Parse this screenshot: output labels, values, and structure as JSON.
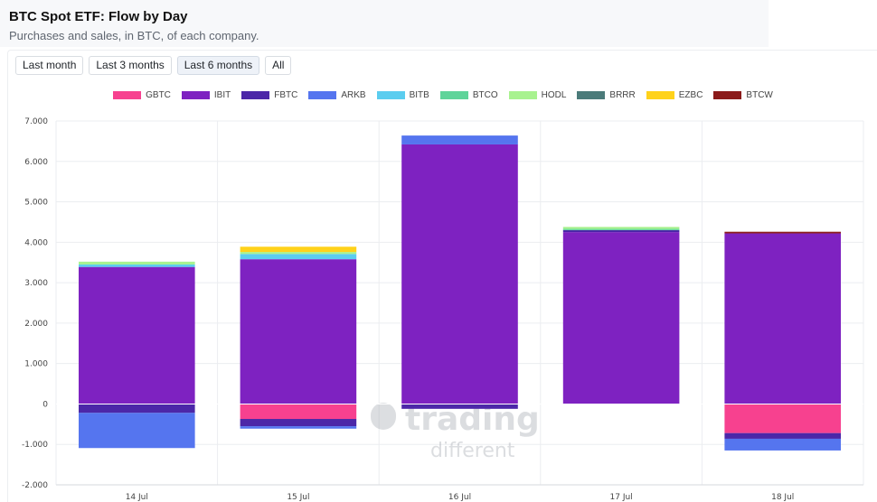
{
  "header": {
    "title": "BTC Spot ETF: Flow by Day",
    "subtitle": "Purchases and sales, in BTC, of each company."
  },
  "range_buttons": [
    {
      "label": "Last month",
      "active": false
    },
    {
      "label": "Last 3 months",
      "active": false
    },
    {
      "label": "Last 6 months",
      "active": true
    },
    {
      "label": "All",
      "active": false
    }
  ],
  "watermark": {
    "line1": "trading",
    "line2": "different"
  },
  "chart_data": {
    "type": "bar",
    "stacked": true,
    "categories": [
      "14 Jul",
      "15 Jul",
      "16 Jul",
      "17 Jul",
      "18 Jul"
    ],
    "ylim": [
      -2000,
      7000
    ],
    "yticks": [
      -2000,
      -1000,
      0,
      1000,
      2000,
      3000,
      4000,
      5000,
      6000,
      7000
    ],
    "ytick_labels": [
      "-2.000",
      "-1.000",
      "0",
      "1.000",
      "2.000",
      "3.000",
      "4.000",
      "5.000",
      "6.000",
      "7.000"
    ],
    "grid": true,
    "legend_position": "top-center",
    "series": [
      {
        "name": "GBTC",
        "color": "#f7418f",
        "values": [
          0,
          -370,
          0,
          0,
          -720
        ]
      },
      {
        "name": "IBIT",
        "color": "#7e22c1",
        "values": [
          3390,
          3580,
          6420,
          4250,
          4220
        ]
      },
      {
        "name": "FBTC",
        "color": "#4c27a8",
        "values": [
          -220,
          -180,
          -120,
          50,
          -140
        ]
      },
      {
        "name": "ARKB",
        "color": "#5575ef",
        "values": [
          -870,
          -60,
          220,
          0,
          -290
        ]
      },
      {
        "name": "BITB",
        "color": "#5bcdef",
        "values": [
          60,
          130,
          0,
          0,
          0
        ]
      },
      {
        "name": "BTCO",
        "color": "#5fd49a",
        "values": [
          0,
          0,
          0,
          30,
          0
        ]
      },
      {
        "name": "HODL",
        "color": "#a8f28f",
        "values": [
          70,
          50,
          0,
          50,
          0
        ]
      },
      {
        "name": "BRRR",
        "color": "#4b7b7a",
        "values": [
          0,
          0,
          0,
          0,
          0
        ]
      },
      {
        "name": "EZBC",
        "color": "#ffd21a",
        "values": [
          0,
          130,
          0,
          0,
          0
        ]
      },
      {
        "name": "BTCW",
        "color": "#8b1a1a",
        "values": [
          0,
          0,
          0,
          0,
          40
        ]
      }
    ]
  }
}
